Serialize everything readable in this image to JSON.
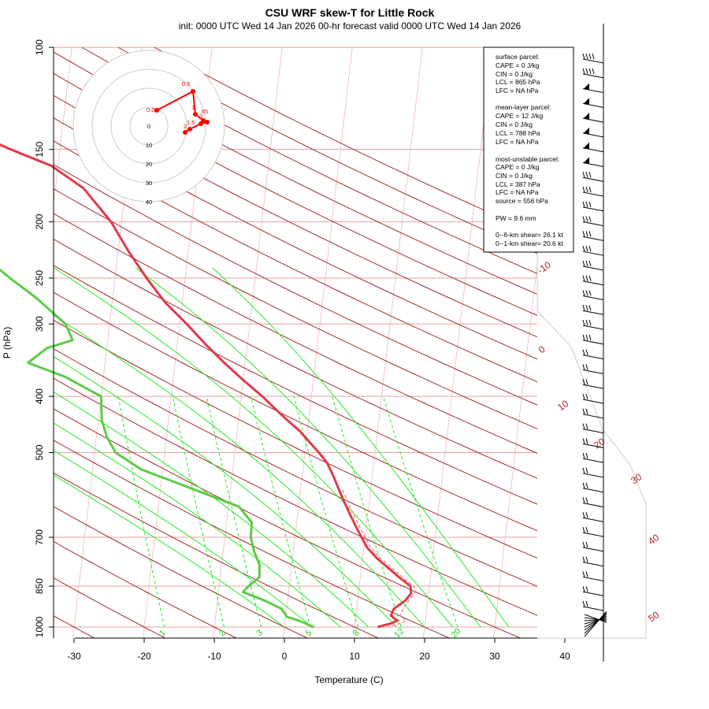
{
  "title": "CSU WRF skew-T for Little Rock",
  "subtitle": "init: 0000 UTC Wed 14 Jan 2026     00-hr forecast valid 0000 UTC Wed 14 Jan 2026",
  "chart_data": {
    "type": "skew-T",
    "xlabel": "Temperature (C)",
    "ylabel": "P (hPa)",
    "x_ticks": [
      -30,
      -20,
      -10,
      0,
      10,
      20,
      30,
      40
    ],
    "y_ticks": [
      100,
      150,
      200,
      250,
      300,
      400,
      500,
      700,
      850,
      1000
    ],
    "pressure_range_hPa": [
      1000,
      100
    ],
    "isotherm_labels": [
      -10,
      0,
      10,
      20,
      30,
      40,
      50
    ],
    "mixing_ratio_labels": [
      "1",
      "2",
      "3",
      "5",
      "8",
      "12",
      "20"
    ],
    "series": [
      {
        "name": "temperature",
        "color": "#e03a4a",
        "points": [
          [
            13.3,
            1000
          ],
          [
            15.2,
            985
          ],
          [
            16.0,
            975
          ],
          [
            15.0,
            955
          ],
          [
            15.3,
            930
          ],
          [
            16.8,
            900
          ],
          [
            17.5,
            875
          ],
          [
            17.3,
            850
          ],
          [
            15.5,
            820
          ],
          [
            13.5,
            785
          ],
          [
            12.0,
            760
          ],
          [
            10.5,
            730
          ],
          [
            9.5,
            700
          ],
          [
            8.5,
            670
          ],
          [
            7.5,
            640
          ],
          [
            6.5,
            610
          ],
          [
            5.5,
            580
          ],
          [
            4.5,
            550
          ],
          [
            3.3,
            520
          ],
          [
            2.0,
            500
          ],
          [
            0.5,
            480
          ],
          [
            -1.0,
            460
          ],
          [
            -3.0,
            440
          ],
          [
            -5.0,
            420
          ],
          [
            -7.0,
            400
          ],
          [
            -10.0,
            375
          ],
          [
            -13.0,
            350
          ],
          [
            -16.0,
            325
          ],
          [
            -19.0,
            300
          ],
          [
            -22.5,
            275
          ],
          [
            -25.5,
            250
          ],
          [
            -28.5,
            225
          ],
          [
            -31.5,
            200
          ],
          [
            -36.0,
            175
          ],
          [
            -41.0,
            160
          ],
          [
            -47.0,
            150
          ],
          [
            -53.0,
            140
          ],
          [
            -59.0,
            130
          ],
          [
            -65.0,
            120
          ],
          [
            -72.0,
            110
          ],
          [
            -79.0,
            100
          ]
        ]
      },
      {
        "name": "dewpoint",
        "color": "#5dcb47",
        "points": [
          [
            4.2,
            1000
          ],
          [
            2.0,
            975
          ],
          [
            0.2,
            960
          ],
          [
            -0.7,
            930
          ],
          [
            -3.3,
            900
          ],
          [
            -6.5,
            870
          ],
          [
            -5.8,
            850
          ],
          [
            -4.4,
            820
          ],
          [
            -4.6,
            780
          ],
          [
            -5.6,
            740
          ],
          [
            -6.3,
            700
          ],
          [
            -6.4,
            660
          ],
          [
            -8.5,
            620
          ],
          [
            -15.0,
            580
          ],
          [
            -23.0,
            535
          ],
          [
            -27.0,
            500
          ],
          [
            -28.5,
            470
          ],
          [
            -29.5,
            440
          ],
          [
            -30.0,
            400
          ],
          [
            -35.5,
            370
          ],
          [
            -41.0,
            350
          ],
          [
            -38.5,
            330
          ],
          [
            -35.0,
            320
          ],
          [
            -36.3,
            300
          ],
          [
            -41.0,
            270
          ],
          [
            -45.0,
            250
          ],
          [
            -50.0,
            225
          ],
          [
            -54.5,
            200
          ],
          [
            -59.5,
            180
          ]
        ]
      }
    ],
    "wind_barbs_count": 38,
    "hodograph": {
      "ring_labels": [
        "0",
        "10",
        "20",
        "30",
        "40"
      ],
      "point_labels": [
        "0.5",
        "1",
        "0.01",
        "6",
        "5",
        "3",
        "2",
        "1.5"
      ]
    },
    "parcel_info": {
      "surface": [
        "surface parcel:",
        "CAPE = 0 J/kg",
        "CIN = 0 J/kg",
        "LCL = 865 hPa",
        "LFC = NA hPa"
      ],
      "mean_layer": [
        "mean-layer parcel:",
        "CAPE = 12 J/kg",
        "CIN = 0 J/kg",
        "LCL = 788 hPa",
        "LFC = NA hPa"
      ],
      "most_unstable": [
        "most-unstable parcel:",
        "CAPE = 0 J/kg",
        "CIN = 0 J/kg",
        "LCL = 387 hPa",
        "LFC = NA hPa",
        "source = 556 hPa"
      ],
      "pw": "PW =  9.6 mm",
      "shear_0_6": "0--6-km shear= 26.1 kt",
      "shear_0_1": "0--1-km shear= 20.6 kt"
    }
  }
}
